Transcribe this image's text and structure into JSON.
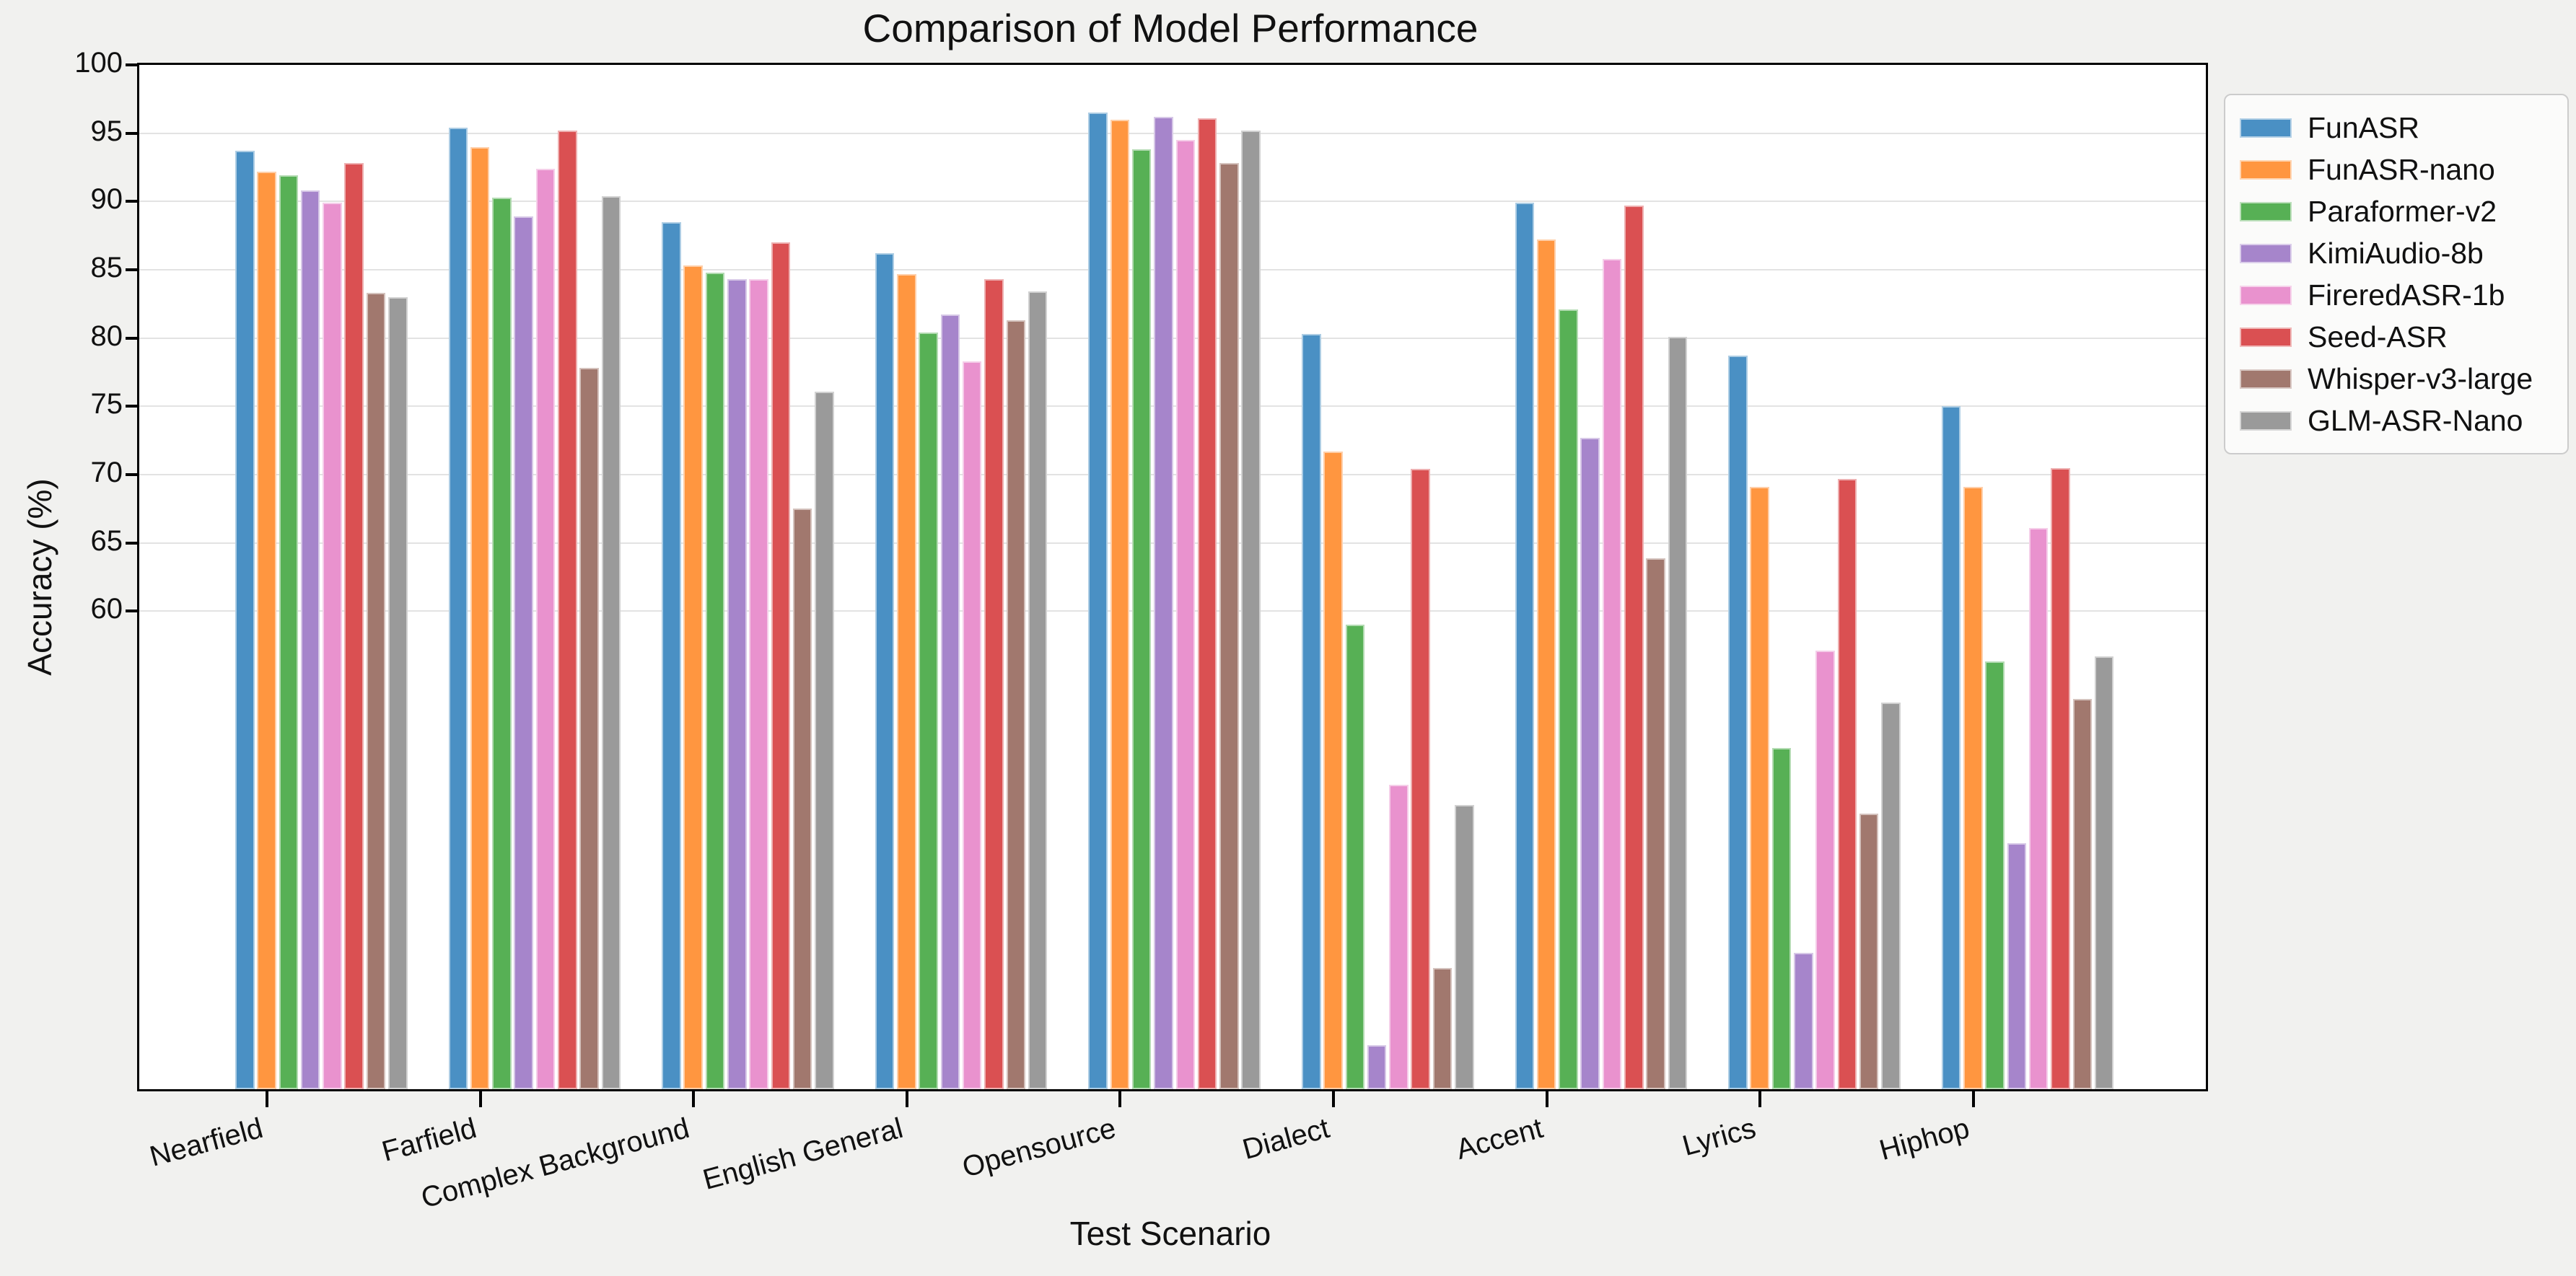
{
  "figure": {
    "background": "#f1f1ef",
    "plot_background": "#ffffff",
    "grid_color": "#e3e3e3",
    "spine_color": "#000000"
  },
  "chart_data": {
    "type": "bar",
    "title": "Comparison of Model Performance",
    "xlabel": "Test Scenario",
    "ylabel": "Accuracy (%)",
    "categories": [
      "Nearfield",
      "Farfield",
      "Complex Background",
      "English General",
      "Opensource",
      "Dialect",
      "Accent",
      "Lyrics",
      "Hiphop"
    ],
    "series": [
      {
        "name": "FunASR",
        "color": "#4a90c4",
        "values": [
          93.7,
          95.4,
          88.5,
          86.2,
          96.5,
          80.3,
          89.9,
          78.7,
          75.0
        ]
      },
      {
        "name": "FunASR-nano",
        "color": "#ff9640",
        "values": [
          92.2,
          94.0,
          85.3,
          84.7,
          96.0,
          71.7,
          87.2,
          69.1,
          69.1
        ]
      },
      {
        "name": "Paraformer-v2",
        "color": "#57b055",
        "values": [
          91.9,
          90.3,
          84.8,
          80.4,
          93.8,
          59.0,
          82.1,
          50.0,
          56.3
        ]
      },
      {
        "name": "KimiAudio-8b",
        "color": "#a685cb",
        "values": [
          90.8,
          88.9,
          84.3,
          81.7,
          96.2,
          28.2,
          72.7,
          35.0,
          43.0
        ]
      },
      {
        "name": "FireredASR-1b",
        "color": "#e992ce",
        "values": [
          89.9,
          92.4,
          84.3,
          78.3,
          94.5,
          47.3,
          85.8,
          57.1,
          66.1
        ]
      },
      {
        "name": "Seed-ASR",
        "color": "#da5052",
        "values": [
          92.8,
          95.2,
          87.0,
          84.3,
          96.1,
          70.4,
          89.7,
          69.7,
          70.5
        ]
      },
      {
        "name": "Whisper-v3-large",
        "color": "#a1786e",
        "values": [
          83.3,
          77.8,
          67.5,
          81.3,
          92.8,
          33.9,
          63.9,
          45.2,
          53.6
        ]
      },
      {
        "name": "GLM-ASR-Nano",
        "color": "#9a9a9a",
        "values": [
          83.0,
          90.4,
          76.1,
          83.4,
          95.2,
          45.8,
          80.1,
          53.3,
          56.7
        ]
      }
    ],
    "ylim": [
      25,
      100
    ],
    "yticks": [
      60,
      65,
      70,
      75,
      80,
      85,
      90,
      95,
      100
    ],
    "grid": "horizontal gridlines at labeled yticks only",
    "legend_position": "outside upper right"
  }
}
